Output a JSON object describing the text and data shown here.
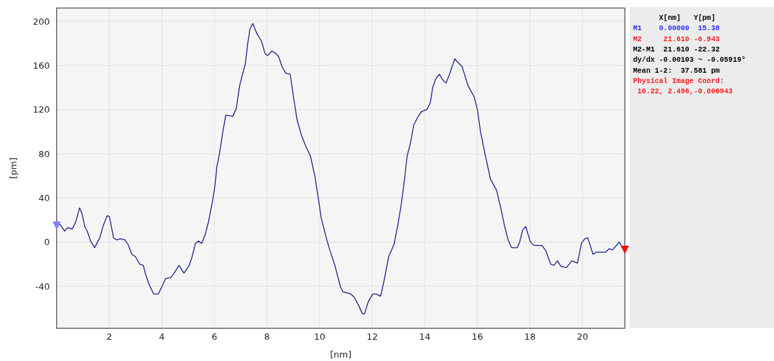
{
  "chart_data": {
    "type": "line",
    "xlabel": "[nm]",
    "ylabel": "[pm]",
    "xlim": [
      0,
      21.61
    ],
    "ylim": [
      -78,
      212
    ],
    "xticks": [
      2,
      4,
      6,
      8,
      10,
      12,
      14,
      16,
      18,
      20
    ],
    "yticks": [
      -40,
      0,
      40,
      80,
      120,
      160,
      200
    ],
    "grid": true,
    "series": [
      {
        "color": "#1c1c8a",
        "marker": "none",
        "x": [
          0,
          0.13,
          0.3,
          0.41,
          0.59,
          0.72,
          0.87,
          0.96,
          1.07,
          1.16,
          1.29,
          1.44,
          1.64,
          1.77,
          1.92,
          2.01,
          2.16,
          2.27,
          2.42,
          2.6,
          2.71,
          2.86,
          2.99,
          3.16,
          3.29,
          3.38,
          3.51,
          3.69,
          3.86,
          3.99,
          4.14,
          4.34,
          4.47,
          4.65,
          4.84,
          5.02,
          5.13,
          5.28,
          5.39,
          5.52,
          5.65,
          5.78,
          5.91,
          6.02,
          6.09,
          6.19,
          6.32,
          6.43,
          6.7,
          6.83,
          6.96,
          7.09,
          7.18,
          7.26,
          7.35,
          7.46,
          7.61,
          7.79,
          7.92,
          8.03,
          8.18,
          8.33,
          8.44,
          8.57,
          8.71,
          8.88,
          9.01,
          9.14,
          9.32,
          9.49,
          9.65,
          9.81,
          9.93,
          10.06,
          10.23,
          10.36,
          10.58,
          10.8,
          10.89,
          11.19,
          11.32,
          11.5,
          11.63,
          11.71,
          11.85,
          12.02,
          12.15,
          12.32,
          12.45,
          12.63,
          12.83,
          12.98,
          13.11,
          13.22,
          13.33,
          13.46,
          13.58,
          13.73,
          13.86,
          14.08,
          14.21,
          14.3,
          14.42,
          14.56,
          14.68,
          14.81,
          14.94,
          15.14,
          15.25,
          15.42,
          15.64,
          15.89,
          16.01,
          16.12,
          16.29,
          16.5,
          16.73,
          16.9,
          17.04,
          17.17,
          17.3,
          17.52,
          17.61,
          17.72,
          17.84,
          18.02,
          18.16,
          18.3,
          18.46,
          18.61,
          18.79,
          18.91,
          19.05,
          19.18,
          19.39,
          19.59,
          19.81,
          19.96,
          20.09,
          20.2,
          20.4,
          20.53,
          20.88,
          21.01,
          21.14,
          21.4,
          21.51,
          21.61
        ],
        "values": [
          16,
          16,
          10,
          13,
          12,
          18,
          31,
          26,
          14,
          10,
          1,
          -5,
          4,
          15,
          24,
          23,
          4,
          2,
          3,
          2,
          -2,
          -11,
          -13,
          -20,
          -21,
          -29,
          -38,
          -47,
          -47,
          -41,
          -33,
          -32,
          -28,
          -21,
          -28,
          -22,
          -15,
          -1,
          1,
          -1,
          7,
          19,
          35,
          51,
          68,
          80,
          100,
          115,
          114,
          121,
          142,
          154,
          162,
          179,
          193,
          198,
          189,
          182,
          171,
          169,
          173,
          171,
          168,
          159,
          153,
          152,
          131,
          111,
          96,
          86,
          78,
          61,
          43,
          22,
          6,
          -5,
          -21,
          -41,
          -45,
          -47,
          -50,
          -58,
          -65,
          -65,
          -54,
          -47,
          -47,
          -49,
          -35,
          -13,
          -2,
          16,
          35,
          55,
          78,
          90,
          106,
          113,
          118,
          120,
          126,
          140,
          148,
          152,
          147,
          144,
          152,
          166,
          163,
          159,
          142,
          131,
          119,
          100,
          80,
          57,
          47,
          30,
          14,
          2,
          -5,
          -5,
          0,
          11,
          14,
          0,
          -3,
          -3,
          -3,
          -8,
          -20,
          -21,
          -17,
          -22,
          -23,
          -17,
          -19,
          -1,
          3,
          4,
          -11,
          -9,
          -9,
          -6,
          -7,
          0,
          -5,
          -7
        ]
      },
      {
        "type": "scatter",
        "color": "#7f7fff",
        "marker": "triangle",
        "x": [
          0
        ],
        "values": [
          15
        ]
      },
      {
        "type": "scatter",
        "color": "#ff0000",
        "marker": "triangle",
        "x": [
          21.61
        ],
        "values": [
          -7
        ]
      }
    ],
    "annotations": [
      "      X[nm]   Y[pm]",
      "M1    0.00000  15.38",
      "M2     21.610 -6.943",
      "M2-M1  21.610 -22.32",
      "dy/dx -0.00103 ~ -0.05919°",
      "Mean 1-2:  37.581 pm",
      "Physical Image Coord:",
      " 10.22, 2.496,-0.006943"
    ]
  }
}
